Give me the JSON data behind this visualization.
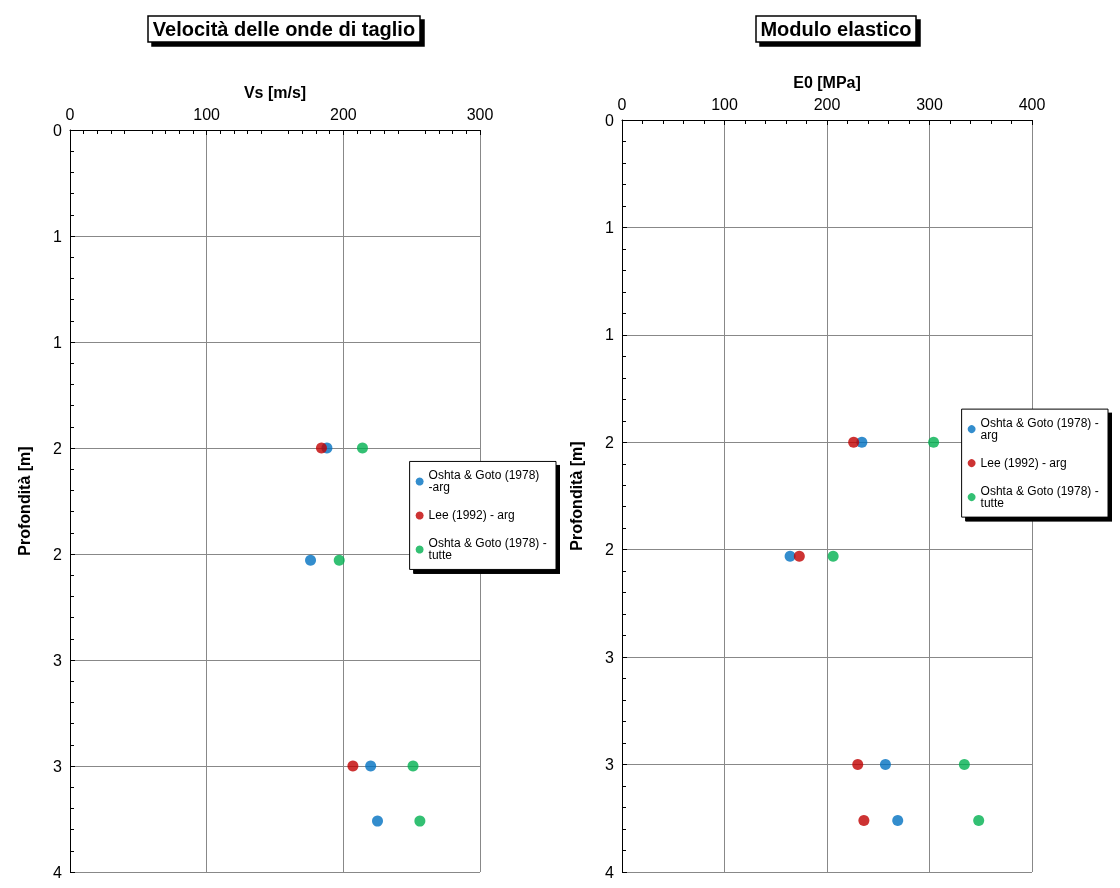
{
  "chart_data": [
    {
      "type": "scatter",
      "title": "Velocità delle onde di taglio",
      "xlabel": "Vs [m/s]",
      "ylabel": "Profondità [m]",
      "xlim": [
        0,
        300
      ],
      "xticks": [
        0,
        100,
        200,
        300
      ],
      "ylim": [
        3.5,
        0
      ],
      "yticks": [
        0,
        {
          "value": 0.5,
          "label": "1"
        },
        1,
        {
          "value": 1.5,
          "label": "2"
        },
        2,
        {
          "value": 2.5,
          "label": "3"
        },
        3,
        {
          "value": 3.5,
          "label": "4"
        }
      ],
      "grid": true,
      "legend": "right",
      "marker": "circle",
      "series": [
        {
          "name": "Oshta & Goto (1978) -arg",
          "color": "#0070c0",
          "x": [
            188,
            176,
            220,
            225
          ],
          "values": [
            1.5,
            2.03,
            3.0,
            3.26
          ]
        },
        {
          "name": "Lee (1992) - arg",
          "color": "#c00000",
          "x": [
            184,
            207
          ],
          "values": [
            1.5,
            3.0
          ]
        },
        {
          "name": "Oshta & Goto (1978) - tutte",
          "color": "#00b050",
          "x": [
            214,
            197,
            251,
            256
          ],
          "values": [
            1.5,
            2.03,
            3.0,
            3.26
          ]
        }
      ]
    },
    {
      "type": "scatter",
      "title": "Modulo elastico",
      "xlabel": "E0 [MPa]",
      "ylabel": "Profondità [m]",
      "xlim": [
        0,
        400
      ],
      "xticks": [
        0,
        100,
        200,
        300,
        400
      ],
      "ylim": [
        3.5,
        0
      ],
      "yticks": [
        0,
        {
          "value": 0.5,
          "label": "1"
        },
        1,
        {
          "value": 1.5,
          "label": "2"
        },
        2,
        {
          "value": 2.5,
          "label": "3"
        },
        3,
        {
          "value": 3.5,
          "label": "4"
        }
      ],
      "grid": true,
      "legend": "right",
      "marker": "circle",
      "series": [
        {
          "name": "Oshta & Goto (1978) - arg",
          "color": "#0070c0",
          "x": [
            234,
            164,
            257,
            269
          ],
          "values": [
            1.5,
            2.03,
            3.0,
            3.26
          ]
        },
        {
          "name": "Lee (1992) - arg",
          "color": "#c00000",
          "x": [
            226,
            173,
            230,
            236
          ],
          "values": [
            1.5,
            2.03,
            3.0,
            3.26
          ]
        },
        {
          "name": "Oshta & Goto (1978) - tutte",
          "color": "#00b050",
          "x": [
            304,
            206,
            334,
            348
          ],
          "values": [
            1.5,
            2.03,
            3.0,
            3.26
          ]
        }
      ]
    }
  ]
}
